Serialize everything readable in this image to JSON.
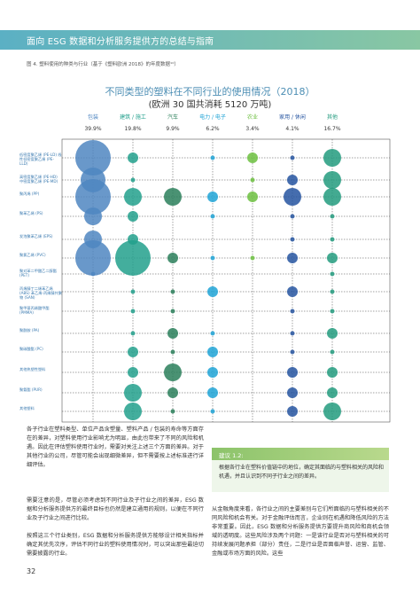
{
  "header": {
    "title": "面向 ESG 数据和分析服务提供方的总结与指南"
  },
  "figure_caption": "图 4. 塑料使用的种类与行业（基于《塑料欧洲 2018》的年度数据¹⁰）",
  "chart_data": {
    "type": "bubble-matrix",
    "title": "不同类型的塑料在不同行业的使用情况（2018）",
    "subtitle": "(欧洲 30 国共消耗 5120 万吨)",
    "columns": [
      {
        "label": "包装",
        "percent": "39.9%",
        "color": "#4f86c1"
      },
      {
        "label": "建筑 / 施工",
        "percent": "19.8%",
        "color": "#22a08c"
      },
      {
        "label": "汽车",
        "percent": "9.9%",
        "color": "#2a7f5a"
      },
      {
        "label": "电力 / 电子",
        "percent": "6.2%",
        "color": "#1fa3d6"
      },
      {
        "label": "农业",
        "percent": "3.4%",
        "color": "#6cbf3f"
      },
      {
        "label": "家用 / 休闲",
        "percent": "4.1%",
        "color": "#2554a0"
      },
      {
        "label": "其他",
        "percent": "16.7%",
        "color": "#229b7e"
      }
    ],
    "rows": [
      "低密度聚乙烯 (PE-LD) 线性低密度聚乙烯 (PE-LLD)",
      "高密度聚乙烯 (PE-HD) 中密度聚乙烯 (PE-MD)",
      "聚丙烯 (PP)",
      "聚苯乙烯 (PS)",
      "发泡聚苯乙烯 (EPS)",
      "聚氯乙烯 (PVC)",
      "聚对苯二甲酸乙二醇酯 (PET)",
      "丙烯腈丁二烯苯乙烯 (ABS) 苯乙烯-丙烯腈共聚物 (SAN)",
      "聚甲基丙烯酸甲酯 (PMMA)",
      "聚酰胺 (PA)",
      "聚碳酸酯 (PC)",
      "其他热塑性塑料",
      "聚氨酯 (PUR)",
      "其他塑料"
    ],
    "sizes": [
      [
        5,
        2,
        0,
        1,
        2,
        1,
        3
      ],
      [
        4,
        1,
        0,
        0,
        1,
        2,
        3
      ],
      [
        5,
        3,
        3,
        2,
        2,
        3,
        3
      ],
      [
        3,
        2,
        0,
        1,
        0,
        1,
        1
      ],
      [
        3,
        2,
        0,
        0,
        0,
        1,
        1
      ],
      [
        5,
        5,
        2,
        1,
        1,
        2,
        2
      ],
      [
        1,
        0,
        0,
        0,
        0,
        0,
        1
      ],
      [
        0,
        1,
        1,
        2,
        0,
        2,
        1
      ],
      [
        0,
        1,
        1,
        0,
        0,
        1,
        1
      ],
      [
        0,
        1,
        2,
        1,
        0,
        1,
        2
      ],
      [
        0,
        2,
        1,
        2,
        0,
        1,
        1
      ],
      [
        0,
        2,
        3,
        2,
        0,
        2,
        2
      ],
      [
        0,
        3,
        2,
        2,
        0,
        2,
        2
      ],
      [
        0,
        3,
        1,
        1,
        0,
        2,
        3
      ]
    ],
    "size_scale_note": "relative bubble size 0-5"
  },
  "body_left": [
    "各子行业在塑料类型、单位产品含塑量、塑料产品 / 包装的寿命等方面存在的差异，对塑料使用行业影响尤为明显，由此也带来了不同的风险和机遇。因此在评估塑料使用行业时，需要对关注上述三个方面的差异。对于其他行业的公司，尽管可能会出现细微差异，但不需要按上述标准进行详细评估。",
    "需要注意的是，尽管必须考虑到不同行业及子行业之间的差异，ESG 数据和分析服务提供方的最终目标也仍然是建立通用的规则，以便在不同行业及子行业之间进行比较。",
    "按照这三个行业类别，ESG 数据和分析服务提供方能够设计相关指标并确定其优先次序，评估不同行业的塑料使用情况时，可以突出那些最迫切需要披露的行业。"
  ],
  "advice": {
    "title": "建议 1.2:",
    "text": "根据各行业在塑料价值链中的地位，确定其面临的与塑料相关的风险和机遇，并且认识到不同子行业之间的差异。"
  },
  "body_right": "从金融角度来看，各行业之间的主要差别与它们所面临的与塑料相关的不同风险和机会有关。对于金融评估而言，企业则在机遇和降低风险的方法非常重要。因此，ESG 数据和分析服务提供方要提升商风险和商机会领域的透明度。这些风险涉及两个问题：一是该行业是否对与塑料相关的可持续发展问题承担（部分）责任，二是行业是否面临声誉、运营、监管、金融或市场方面的风险。这些",
  "page_number": "32"
}
